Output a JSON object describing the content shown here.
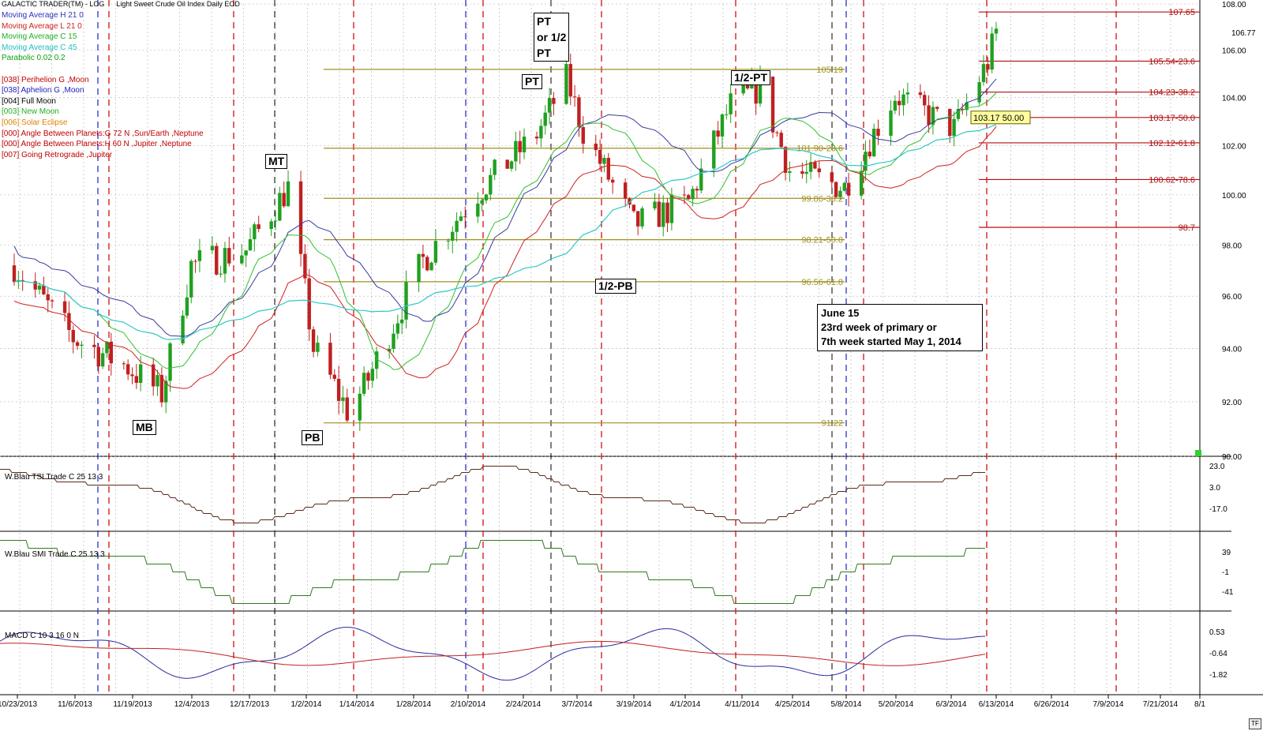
{
  "app_title": "GALACTIC TRADER(TM) - LOG",
  "instrument_title": "Light Sweet Crude Oil Index Daily EOD",
  "legend": [
    {
      "text": "Moving Average H 21 0",
      "color": "#3030c0"
    },
    {
      "text": "Moving Average L 21 0",
      "color": "#d02020"
    },
    {
      "text": "Moving Average C 15",
      "color": "#20b020"
    },
    {
      "text": "Moving Average C 45",
      "color": "#20c0c0"
    },
    {
      "text": "Parabolic 0.02 0.2",
      "color": "#10a010"
    },
    {
      "text": "",
      "color": "#000"
    },
    {
      "text": "[038] Perihelion G ,Moon",
      "color": "#c00000"
    },
    {
      "text": "[038] Aphelion G ,Moon",
      "color": "#2020c0"
    },
    {
      "text": "[004] Full Moon",
      "color": "#000000"
    },
    {
      "text": "[003] New Moon",
      "color": "#20b020"
    },
    {
      "text": "[006] Solar Eclipse",
      "color": "#e08000"
    },
    {
      "text": "[000] Angle Between Planets:G 72 N ,Sun/Earth ,Neptune",
      "color": "#c00000"
    },
    {
      "text": "[000] Angle Between Planets:H 60 N ,Jupiter ,Neptune",
      "color": "#c00000"
    },
    {
      "text": "[007] Going Retrograde ,Jupiter",
      "color": "#c00000"
    }
  ],
  "price_axis_labels": [
    "108.00",
    "106.00",
    "104.00",
    "102.00",
    "100.00",
    "98.00",
    "96.00",
    "94.00",
    "92.00",
    "90.00"
  ],
  "right_tags": [
    {
      "text": "106.77",
      "value": 106.77
    }
  ],
  "fib_levels_red": [
    {
      "value": 107.65,
      "label": "107.65"
    },
    {
      "value": 105.54,
      "label": "105.54-23.6"
    },
    {
      "value": 104.23,
      "label": "104.23-38.2"
    },
    {
      "value": 103.17,
      "label": "103.17-50.0"
    },
    {
      "value": 102.12,
      "label": "102.12-61.8"
    },
    {
      "value": 100.62,
      "label": "100.62-78.6"
    },
    {
      "value": 98.7,
      "label": "98.7"
    }
  ],
  "fib_levels_olive": [
    {
      "value": 105.19,
      "label": "105.19"
    },
    {
      "value": 101.9,
      "label": "101.90-23.6"
    },
    {
      "value": 99.86,
      "label": "99.86-38.2"
    },
    {
      "value": 98.21,
      "label": "98.21-50.0"
    },
    {
      "value": 96.56,
      "label": "96.56-61.8"
    },
    {
      "value": 91.22,
      "label": "91.22"
    }
  ],
  "price_tag": "103.17 50.00",
  "annotations": {
    "mt": "MT",
    "mb": "MB",
    "pb": "PB",
    "pt": "PT",
    "pt_box_line1": "PT",
    "pt_box_line2": "or 1/2",
    "pt_box_line3": "PT",
    "half_pt": "1/2-PT",
    "half_pb": "1/2-PB"
  },
  "note": {
    "line1": "June 15",
    "line2": "23rd week of primary or",
    "line3": "7th week started May 1, 2014"
  },
  "tsi": {
    "label": "W.Blau TSI Trade C 25 13 3",
    "axis": [
      "23.0",
      "3.0",
      "-17.0"
    ]
  },
  "smi": {
    "label": "W.Blau SMI Trade C 25 13 3",
    "axis": [
      "39",
      "-1",
      "-41"
    ]
  },
  "macd": {
    "label": "MACD C 10 3 16 0 N",
    "axis": [
      "0.53",
      "-0.64",
      "-1.82"
    ]
  },
  "date_labels": [
    "10/23/2013",
    "11/6/2013",
    "11/19/2013",
    "12/4/2013",
    "12/17/2013",
    "1/2/2014",
    "1/14/2014",
    "1/28/2014",
    "2/10/2014",
    "2/24/2014",
    "3/7/2014",
    "3/19/2014",
    "4/1/2014",
    "4/11/2014",
    "4/25/2014",
    "5/8/2014",
    "5/20/2014",
    "6/3/2014",
    "6/13/2014",
    "6/26/2014",
    "7/9/2014",
    "7/21/2014",
    "8/1"
  ],
  "corner_button": "TF",
  "colors": {
    "up": "#20a020",
    "down": "#c02020",
    "ma_h": "#3a3aa0",
    "ma_l": "#d02020",
    "ma_15": "#30c030",
    "ma_45": "#30c8c8",
    "fib_red": "#b01010",
    "fib_olive": "#a09020",
    "vline_red": "#d01010",
    "vline_blue": "#2020c0",
    "vline_black": "#000000",
    "grid": "#b0b0b0"
  },
  "chart_data": {
    "type": "candlestick",
    "title": "Light Sweet Crude Oil Index Daily EOD",
    "y_scale": "log",
    "ylim": [
      90,
      108
    ],
    "x_range": [
      "10/23/2013",
      "8/1/2014"
    ],
    "ohlc_approx": [
      {
        "x": "10/23/2013",
        "c": 97.2
      },
      {
        "x": "11/6/2013",
        "c": 94.4
      },
      {
        "x": "11/19/2013",
        "c": 93.3
      },
      {
        "x": "11/27/2013",
        "c": 92.3
      },
      {
        "x": "12/4/2013",
        "c": 97.2
      },
      {
        "x": "12/17/2013",
        "c": 97.8
      },
      {
        "x": "12/27/2013",
        "c": 100.3
      },
      {
        "x": "1/2/2014",
        "c": 94.0
      },
      {
        "x": "1/10/2014",
        "c": 91.7
      },
      {
        "x": "1/14/2014",
        "c": 92.5
      },
      {
        "x": "1/28/2014",
        "c": 97.4
      },
      {
        "x": "2/10/2014",
        "c": 100.1
      },
      {
        "x": "2/24/2014",
        "c": 102.5
      },
      {
        "x": "3/3/2014",
        "c": 104.8
      },
      {
        "x": "3/7/2014",
        "c": 102.6
      },
      {
        "x": "3/19/2014",
        "c": 98.8
      },
      {
        "x": "4/1/2014",
        "c": 99.7
      },
      {
        "x": "4/11/2014",
        "c": 103.7
      },
      {
        "x": "4/18/2014",
        "c": 104.4
      },
      {
        "x": "4/25/2014",
        "c": 101.0
      },
      {
        "x": "5/8/2014",
        "c": 100.3
      },
      {
        "x": "5/20/2014",
        "c": 104.1
      },
      {
        "x": "6/3/2014",
        "c": 102.7
      },
      {
        "x": "6/11/2014",
        "c": 105.5
      },
      {
        "x": "6/13/2014",
        "c": 106.8
      }
    ]
  }
}
